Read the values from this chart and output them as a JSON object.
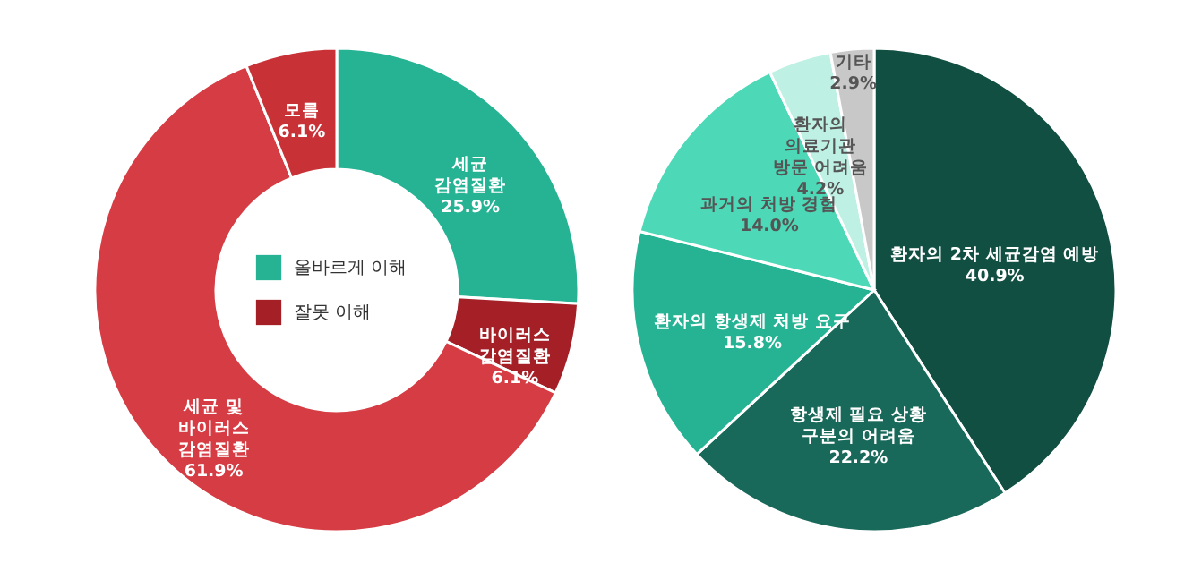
{
  "chart_data": [
    {
      "type": "donut",
      "categories": [
        "세균\n감염질환",
        "바이러스\n감염질환",
        "세균 및\n바이러스\n감염질환",
        "모름"
      ],
      "values": [
        25.9,
        6.1,
        61.9,
        6.1
      ],
      "colors": [
        "#25b393",
        "#a51f27",
        "#d53c43",
        "#c83236"
      ],
      "value_labels": [
        "25.9%",
        "6.1%",
        "61.9%",
        "6.1%"
      ],
      "annotations": [
        "올바르게 이해",
        "잘못 이해"
      ]
    },
    {
      "type": "pie",
      "categories": [
        "환자의 2차 세균감염 예방",
        "항생제 필요 상황\n구분의 어려움",
        "환자의 항생제 처방 요구",
        "과거의 처방 경험",
        "환자의\n의료기관\n방문 어려움",
        "기타"
      ],
      "values": [
        40.9,
        22.2,
        15.8,
        14.0,
        4.2,
        2.9
      ],
      "colors": [
        "#114f42",
        "#18695a",
        "#25b393",
        "#4dd9b7",
        "#bff0e4",
        "#c8c8c8"
      ],
      "value_labels": [
        "40.9%",
        "22.2%",
        "15.8%",
        "14.0%",
        "4.2%",
        "2.9%"
      ]
    }
  ]
}
